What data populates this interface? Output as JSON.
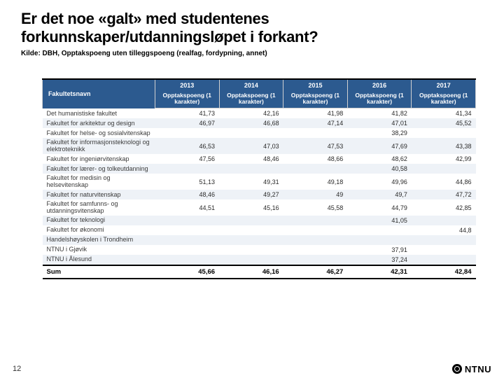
{
  "title": "Er det noe «galt» med studentenes forkunnskaper/utdanningsløpet i forkant?",
  "subtitle": "Kilde: DBH, Opptakspoeng uten tilleggspoeng (realfag, fordypning, annet)",
  "page_number": "12",
  "logo_text": "NTNU",
  "table": {
    "header_rowlabel": "Fakultetsnavn",
    "years": [
      "2013",
      "2014",
      "2015",
      "2016",
      "2017"
    ],
    "subheader": "Opptakspoeng (1 karakter)",
    "rows": [
      {
        "label": "Det humanistiske fakultet",
        "vals": [
          "41,73",
          "42,16",
          "41,98",
          "41,82",
          "41,34"
        ]
      },
      {
        "label": "Fakultet for arkitektur og design",
        "vals": [
          "46,97",
          "46,68",
          "47,14",
          "47,01",
          "45,52"
        ]
      },
      {
        "label": "Fakultet for helse- og sosialvitenskap",
        "vals": [
          "",
          "",
          "",
          "38,29",
          ""
        ]
      },
      {
        "label": "Fakultet for informasjonsteknologi og elektroteknikk",
        "vals": [
          "46,53",
          "47,03",
          "47,53",
          "47,69",
          "43,38"
        ]
      },
      {
        "label": "Fakultet for ingeniørvitenskap",
        "vals": [
          "47,56",
          "48,46",
          "48,66",
          "48,62",
          "42,99"
        ]
      },
      {
        "label": "Fakultet for lærer- og tolkeutdanning",
        "vals": [
          "",
          "",
          "",
          "40,58",
          ""
        ]
      },
      {
        "label": "Fakultet for medisin og helsevitenskap",
        "vals": [
          "51,13",
          "49,31",
          "49,18",
          "49,96",
          "44,86"
        ]
      },
      {
        "label": "Fakultet for naturvitenskap",
        "vals": [
          "48,46",
          "49,27",
          "49",
          "49,7",
          "47,72"
        ]
      },
      {
        "label": "Fakultet for samfunns- og utdanningsvitenskap",
        "vals": [
          "44,51",
          "45,16",
          "45,58",
          "44,79",
          "42,85"
        ]
      },
      {
        "label": "Fakultet for teknologi",
        "vals": [
          "",
          "",
          "",
          "41,05",
          ""
        ]
      },
      {
        "label": "Fakultet for økonomi",
        "vals": [
          "",
          "",
          "",
          "",
          "44,8"
        ]
      },
      {
        "label": "Handelshøyskolen i Trondheim",
        "vals": [
          "",
          "",
          "",
          "",
          ""
        ]
      },
      {
        "label": "NTNU i Gjøvik",
        "vals": [
          "",
          "",
          "",
          "37,91",
          ""
        ]
      },
      {
        "label": "NTNU i Ålesund",
        "vals": [
          "",
          "",
          "",
          "37,24",
          ""
        ]
      }
    ],
    "footer": {
      "label": "Sum",
      "vals": [
        "45,66",
        "46,16",
        "46,27",
        "42,31",
        "42,84"
      ]
    }
  },
  "style": {
    "header_bg": "#2c5a8f",
    "alt_row_bg": "#eef2f7",
    "title_fontsize": 22,
    "table_fontsize": 9
  }
}
